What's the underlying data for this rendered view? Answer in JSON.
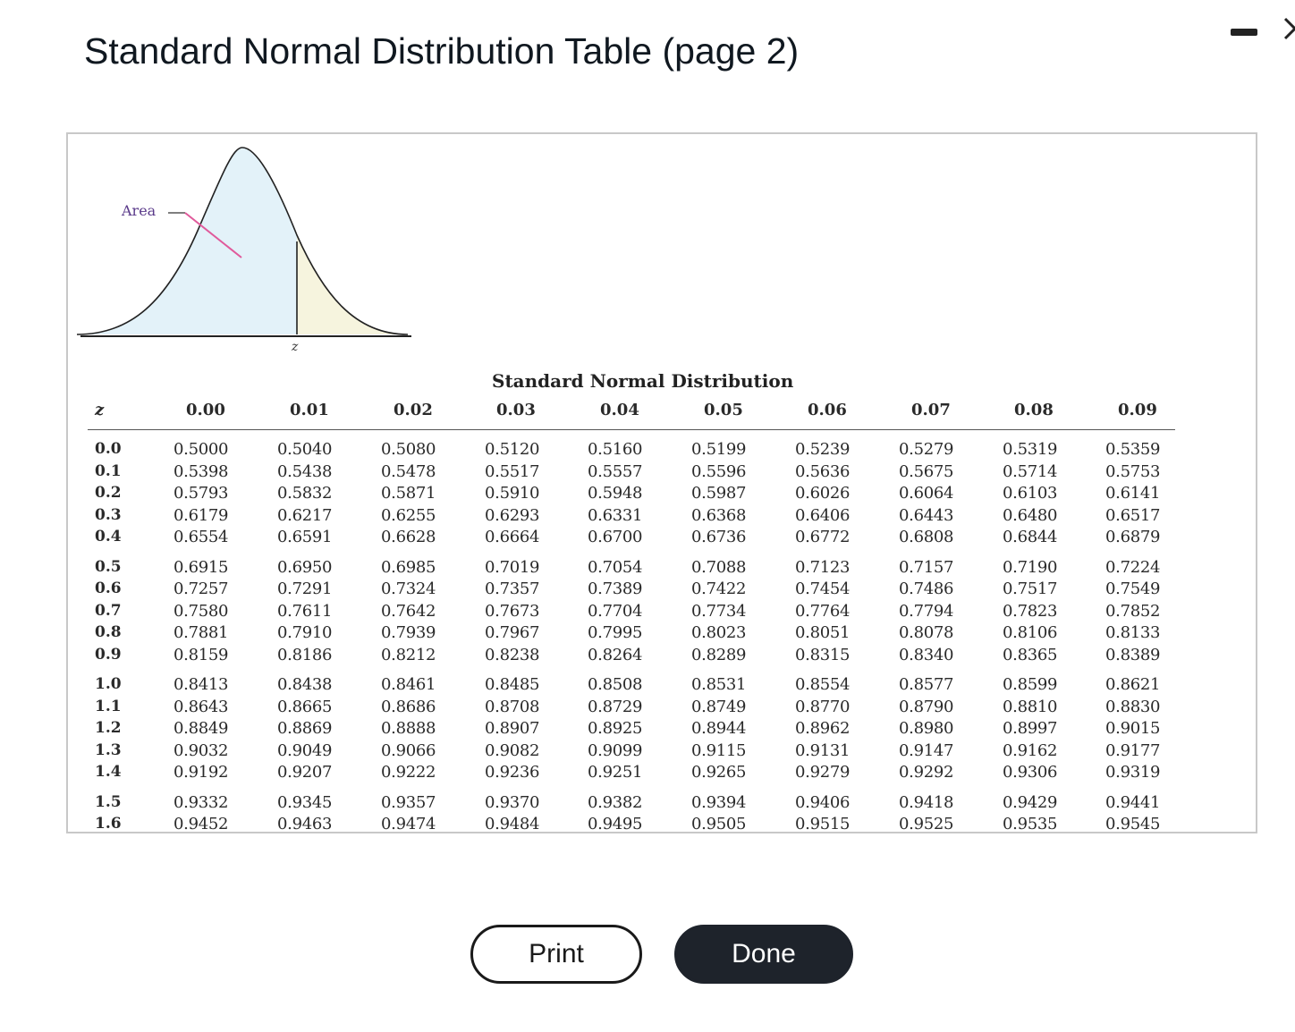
{
  "dialog": {
    "title": "Standard Normal Distribution Table (page 2)",
    "minimize_icon": "minimize-icon",
    "close_icon": "close-icon"
  },
  "figure": {
    "area_label": "Area",
    "z_marker": "z",
    "colors": {
      "area_fill": "#e3f2f9",
      "tail_fill": "#f6f4de",
      "pointer_line": "#e05a9b",
      "curve_line": "#222222"
    }
  },
  "table": {
    "caption": "Standard Normal Distribution",
    "z_header": "z",
    "column_headers": [
      "0.00",
      "0.01",
      "0.02",
      "0.03",
      "0.04",
      "0.05",
      "0.06",
      "0.07",
      "0.08",
      "0.09"
    ],
    "rows": [
      {
        "z": "0.0",
        "values": [
          "0.5000",
          "0.5040",
          "0.5080",
          "0.5120",
          "0.5160",
          "0.5199",
          "0.5239",
          "0.5279",
          "0.5319",
          "0.5359"
        ]
      },
      {
        "z": "0.1",
        "values": [
          "0.5398",
          "0.5438",
          "0.5478",
          "0.5517",
          "0.5557",
          "0.5596",
          "0.5636",
          "0.5675",
          "0.5714",
          "0.5753"
        ]
      },
      {
        "z": "0.2",
        "values": [
          "0.5793",
          "0.5832",
          "0.5871",
          "0.5910",
          "0.5948",
          "0.5987",
          "0.6026",
          "0.6064",
          "0.6103",
          "0.6141"
        ]
      },
      {
        "z": "0.3",
        "values": [
          "0.6179",
          "0.6217",
          "0.6255",
          "0.6293",
          "0.6331",
          "0.6368",
          "0.6406",
          "0.6443",
          "0.6480",
          "0.6517"
        ]
      },
      {
        "z": "0.4",
        "values": [
          "0.6554",
          "0.6591",
          "0.6628",
          "0.6664",
          "0.6700",
          "0.6736",
          "0.6772",
          "0.6808",
          "0.6844",
          "0.6879"
        ]
      },
      {
        "z": "0.5",
        "values": [
          "0.6915",
          "0.6950",
          "0.6985",
          "0.7019",
          "0.7054",
          "0.7088",
          "0.7123",
          "0.7157",
          "0.7190",
          "0.7224"
        ]
      },
      {
        "z": "0.6",
        "values": [
          "0.7257",
          "0.7291",
          "0.7324",
          "0.7357",
          "0.7389",
          "0.7422",
          "0.7454",
          "0.7486",
          "0.7517",
          "0.7549"
        ]
      },
      {
        "z": "0.7",
        "values": [
          "0.7580",
          "0.7611",
          "0.7642",
          "0.7673",
          "0.7704",
          "0.7734",
          "0.7764",
          "0.7794",
          "0.7823",
          "0.7852"
        ]
      },
      {
        "z": "0.8",
        "values": [
          "0.7881",
          "0.7910",
          "0.7939",
          "0.7967",
          "0.7995",
          "0.8023",
          "0.8051",
          "0.8078",
          "0.8106",
          "0.8133"
        ]
      },
      {
        "z": "0.9",
        "values": [
          "0.8159",
          "0.8186",
          "0.8212",
          "0.8238",
          "0.8264",
          "0.8289",
          "0.8315",
          "0.8340",
          "0.8365",
          "0.8389"
        ]
      },
      {
        "z": "1.0",
        "values": [
          "0.8413",
          "0.8438",
          "0.8461",
          "0.8485",
          "0.8508",
          "0.8531",
          "0.8554",
          "0.8577",
          "0.8599",
          "0.8621"
        ]
      },
      {
        "z": "1.1",
        "values": [
          "0.8643",
          "0.8665",
          "0.8686",
          "0.8708",
          "0.8729",
          "0.8749",
          "0.8770",
          "0.8790",
          "0.8810",
          "0.8830"
        ]
      },
      {
        "z": "1.2",
        "values": [
          "0.8849",
          "0.8869",
          "0.8888",
          "0.8907",
          "0.8925",
          "0.8944",
          "0.8962",
          "0.8980",
          "0.8997",
          "0.9015"
        ]
      },
      {
        "z": "1.3",
        "values": [
          "0.9032",
          "0.9049",
          "0.9066",
          "0.9082",
          "0.9099",
          "0.9115",
          "0.9131",
          "0.9147",
          "0.9162",
          "0.9177"
        ]
      },
      {
        "z": "1.4",
        "values": [
          "0.9192",
          "0.9207",
          "0.9222",
          "0.9236",
          "0.9251",
          "0.9265",
          "0.9279",
          "0.9292",
          "0.9306",
          "0.9319"
        ]
      },
      {
        "z": "1.5",
        "values": [
          "0.9332",
          "0.9345",
          "0.9357",
          "0.9370",
          "0.9382",
          "0.9394",
          "0.9406",
          "0.9418",
          "0.9429",
          "0.9441"
        ]
      },
      {
        "z": "1.6",
        "values": [
          "0.9452",
          "0.9463",
          "0.9474",
          "0.9484",
          "0.9495",
          "0.9505",
          "0.9515",
          "0.9525",
          "0.9535",
          "0.9545"
        ]
      }
    ]
  },
  "buttons": {
    "print_label": "Print",
    "done_label": "Done"
  }
}
